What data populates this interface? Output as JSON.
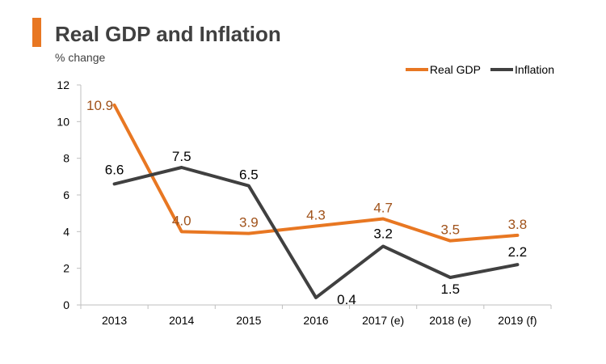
{
  "chart_data": {
    "type": "line",
    "title": "Real GDP and Inflation",
    "subtitle": "% change",
    "categories": [
      "2013",
      "2014",
      "2015",
      "2016",
      "2017 (e)",
      "2018 (e)",
      "2019 (f)"
    ],
    "ylim": [
      0,
      12
    ],
    "yticks": [
      "0",
      "2",
      "4",
      "6",
      "8",
      "10",
      "12"
    ],
    "series": [
      {
        "name": "Real GDP",
        "color": "#e87722",
        "label_color": "#a0521a",
        "values": [
          10.9,
          4.0,
          3.9,
          4.3,
          4.7,
          3.5,
          3.8
        ],
        "labels": [
          "10.9",
          "4.0",
          "3.9",
          "4.3",
          "4.7",
          "3.5",
          "3.8"
        ]
      },
      {
        "name": "Inflation",
        "color": "#404040",
        "label_color": "#000000",
        "values": [
          6.6,
          7.5,
          6.5,
          0.4,
          3.2,
          1.5,
          2.2
        ],
        "labels": [
          "6.6",
          "7.5",
          "6.5",
          "0.4",
          "3.2",
          "1.5",
          "2.2"
        ]
      }
    ],
    "legend_position": "top-right"
  }
}
